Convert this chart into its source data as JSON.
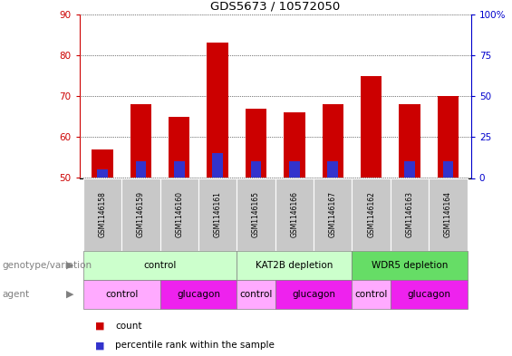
{
  "title": "GDS5673 / 10572050",
  "samples": [
    "GSM1146158",
    "GSM1146159",
    "GSM1146160",
    "GSM1146161",
    "GSM1146165",
    "GSM1146166",
    "GSM1146167",
    "GSM1146162",
    "GSM1146163",
    "GSM1146164"
  ],
  "bar_bottoms": [
    50,
    50,
    50,
    50,
    50,
    50,
    50,
    50,
    50,
    50
  ],
  "count_values": [
    57,
    68,
    65,
    83,
    67,
    66,
    68,
    75,
    68,
    70
  ],
  "percentile_values": [
    52,
    54,
    54,
    56,
    54,
    54,
    54,
    50,
    54,
    54
  ],
  "ylim": [
    50,
    90
  ],
  "yticks_left": [
    50,
    60,
    70,
    80,
    90
  ],
  "yticks_right": [
    0,
    25,
    50,
    75,
    100
  ],
  "bar_color_red": "#cc0000",
  "bar_color_blue": "#3333cc",
  "left_tick_color": "#cc0000",
  "right_tick_color": "#0000cc",
  "grid_color": "#000000",
  "sample_bg_color": "#c8c8c8",
  "genotype_row_color_light": "#ccffcc",
  "genotype_row_color_dark": "#66dd66",
  "agent_control_color": "#ffaaff",
  "agent_glucagon_color": "#ee22ee",
  "genotype_groups": [
    {
      "label": "control",
      "start": 0,
      "end": 3,
      "dark": false
    },
    {
      "label": "KAT2B depletion",
      "start": 4,
      "end": 6,
      "dark": false
    },
    {
      "label": "WDR5 depletion",
      "start": 7,
      "end": 9,
      "dark": true
    }
  ],
  "agent_groups": [
    {
      "label": "control",
      "start": 0,
      "end": 1,
      "is_glucagon": false
    },
    {
      "label": "glucagon",
      "start": 2,
      "end": 3,
      "is_glucagon": true
    },
    {
      "label": "control",
      "start": 4,
      "end": 4,
      "is_glucagon": false
    },
    {
      "label": "glucagon",
      "start": 5,
      "end": 6,
      "is_glucagon": true
    },
    {
      "label": "control",
      "start": 7,
      "end": 7,
      "is_glucagon": false
    },
    {
      "label": "glucagon",
      "start": 8,
      "end": 9,
      "is_glucagon": true
    }
  ],
  "legend_count_label": "count",
  "legend_percentile_label": "percentile rank within the sample",
  "genotype_label": "genotype/variation",
  "agent_label": "agent",
  "bar_width": 0.55
}
